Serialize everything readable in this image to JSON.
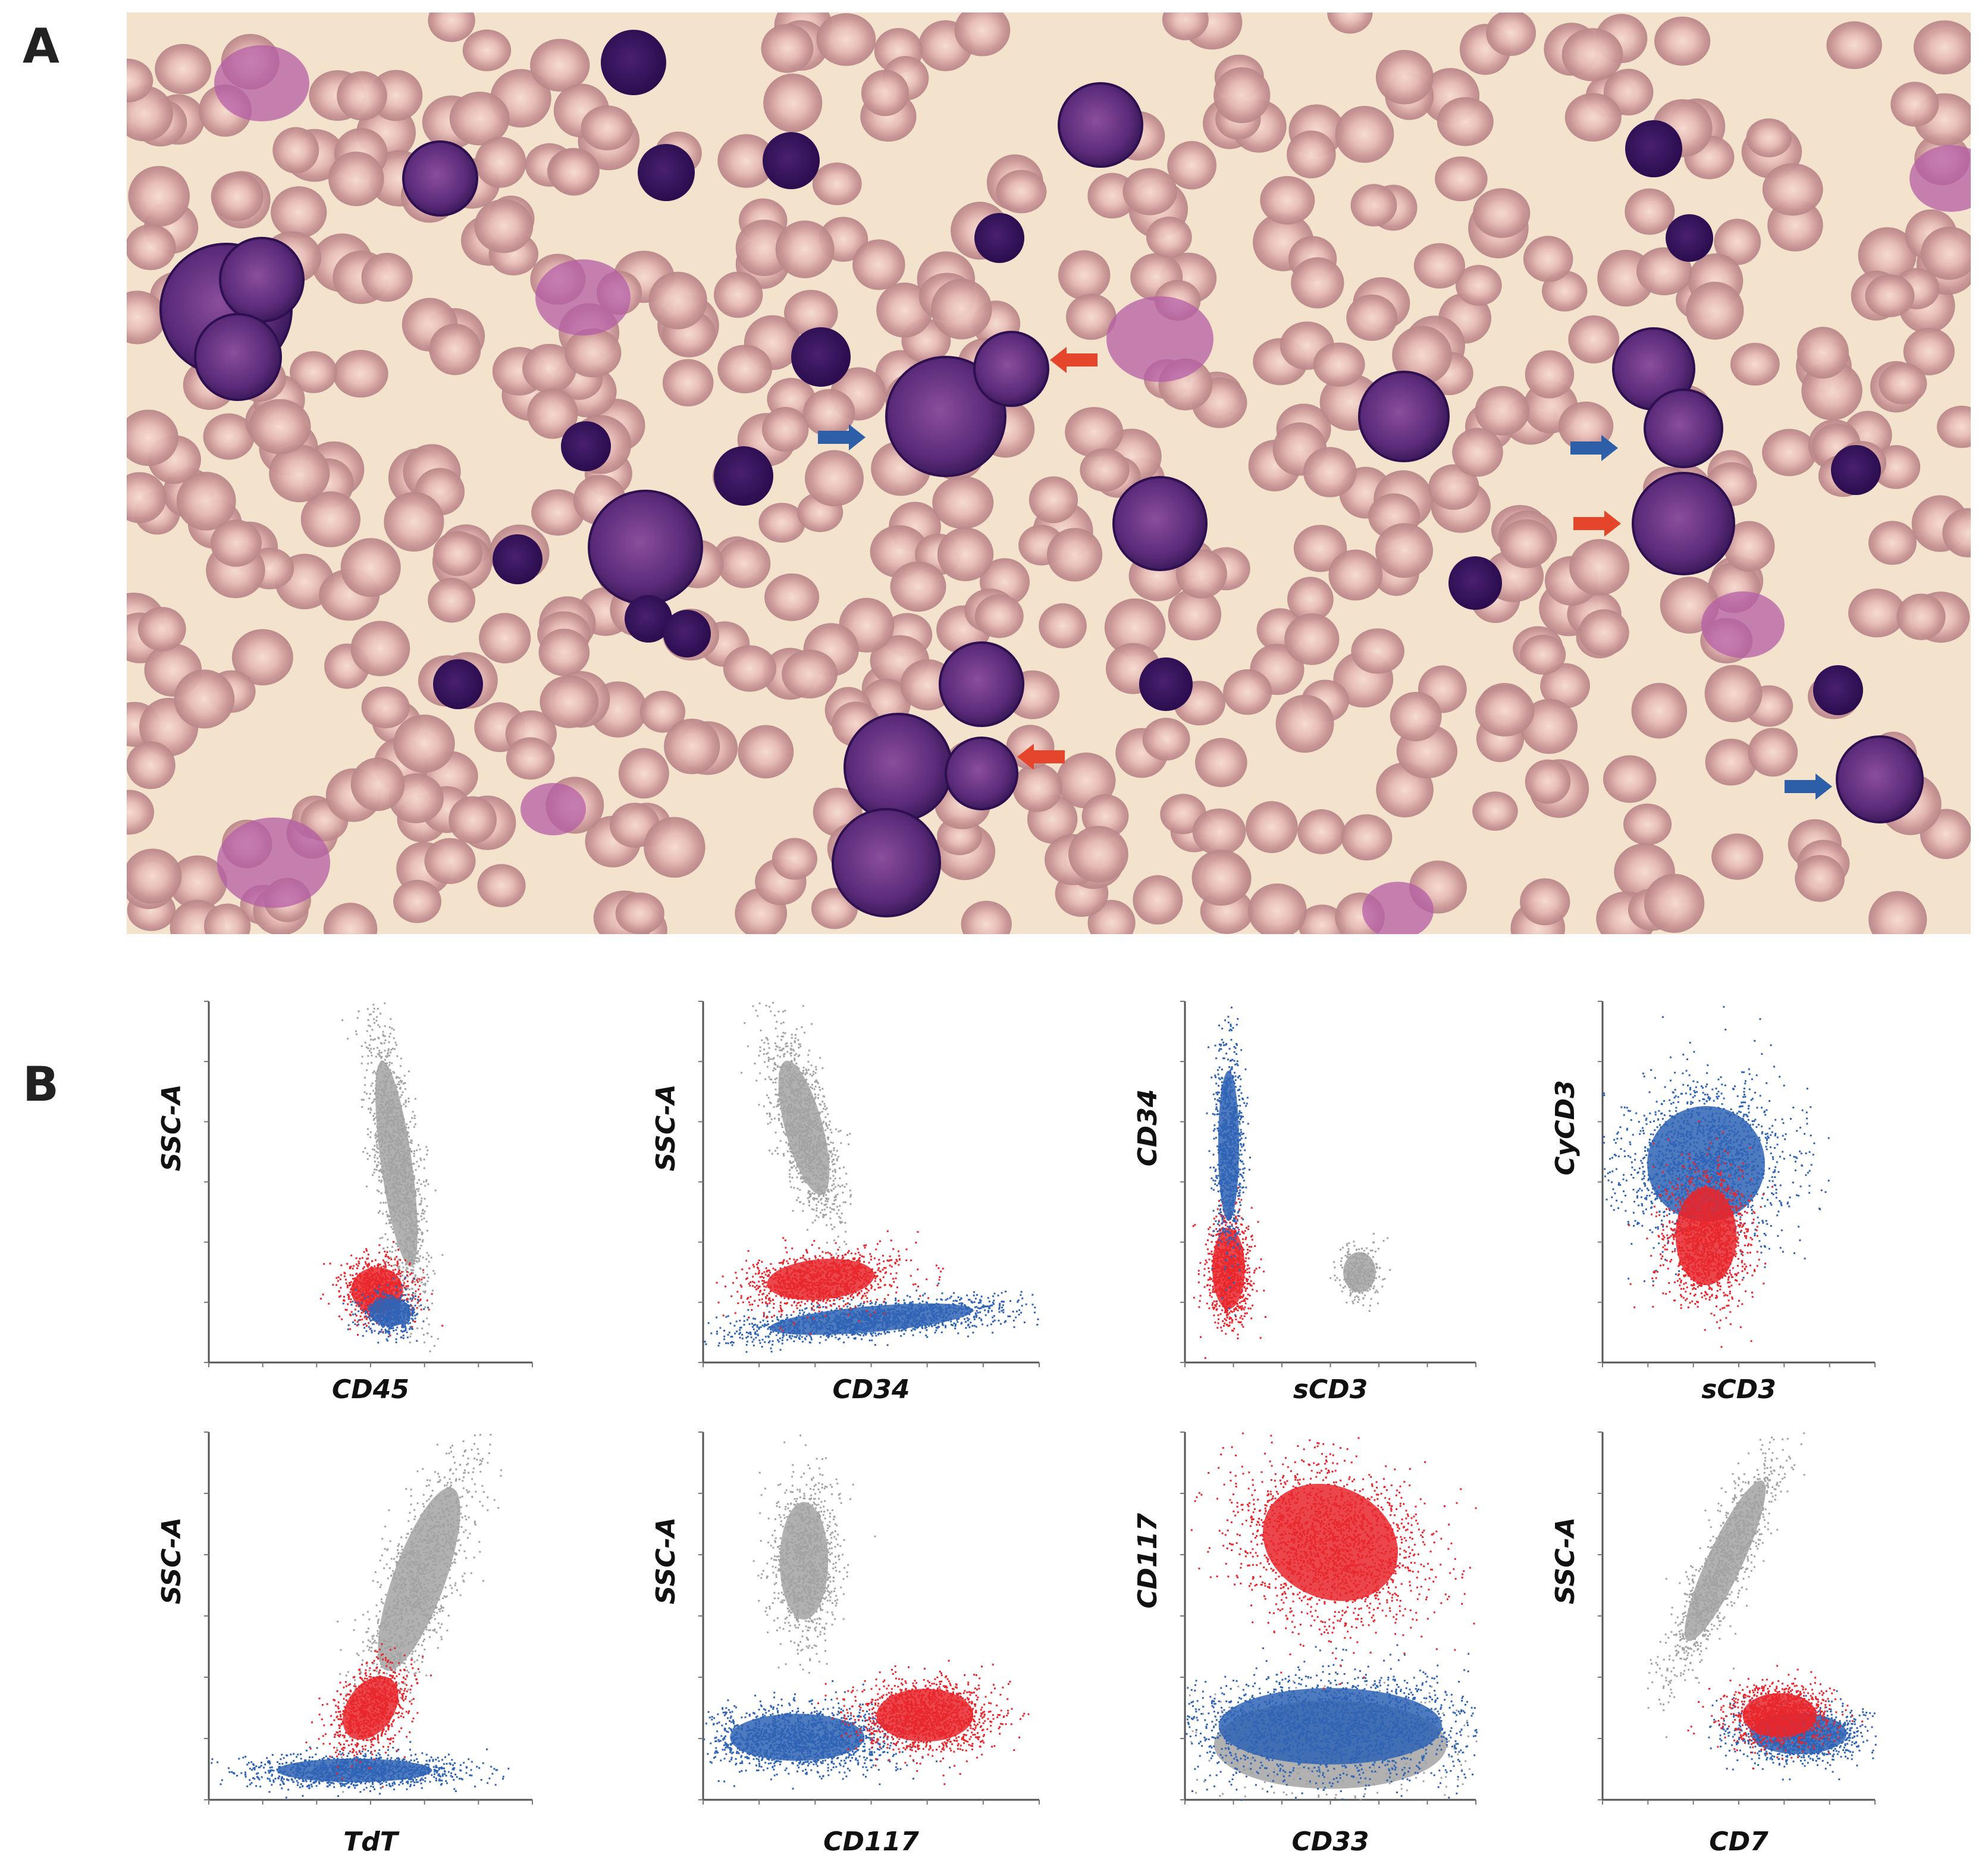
{
  "panels": [
    {
      "label": "A"
    },
    {
      "label": "B",
      "plots": [
        {
          "x_label": "CD45",
          "y_label": "SSC-A"
        },
        {
          "x_label": "CD34",
          "y_label": "SSC-A"
        },
        {
          "x_label": "sCD3",
          "y_label": "CD34"
        },
        {
          "x_label": "sCD3",
          "y_label": "CyCD3"
        },
        {
          "x_label": "TdT",
          "y_label": "SSC-A"
        },
        {
          "x_label": "CD117",
          "y_label": "SSC-A"
        },
        {
          "x_label": "CD33",
          "y_label": "CD117"
        },
        {
          "x_label": "CD7",
          "y_label": "SSC-A"
        }
      ]
    }
  ]
}
